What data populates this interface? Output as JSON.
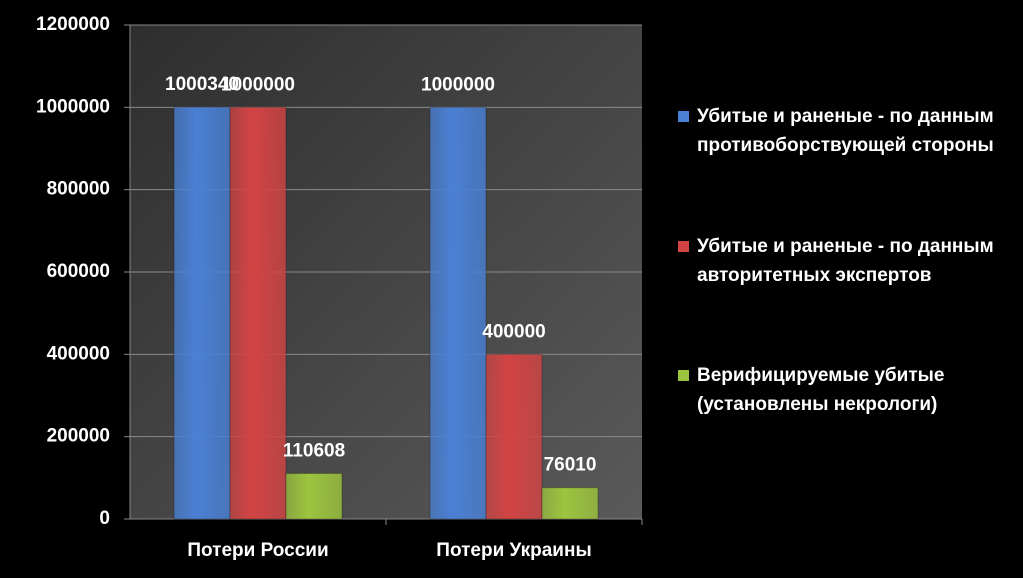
{
  "chart_data": {
    "type": "bar",
    "categories": [
      "Потери России",
      "Потери Украины"
    ],
    "series": [
      {
        "name": "Убитые и раненые - по данным противоборствующей стороны",
        "color": "#4a80d4",
        "values": [
          1000340,
          1000000
        ]
      },
      {
        "name": "Убитые и раненые - по данным авторитетных экспертов",
        "color": "#d24444",
        "values": [
          1000000,
          400000
        ]
      },
      {
        "name": "Верифицируемые убитые (установлены некрологи)",
        "color": "#9dc43e",
        "values": [
          110608,
          76010
        ]
      }
    ],
    "ylim": [
      0,
      1200000
    ],
    "yticks": [
      0,
      200000,
      400000,
      600000,
      800000,
      1000000,
      1200000
    ],
    "grid": true
  }
}
